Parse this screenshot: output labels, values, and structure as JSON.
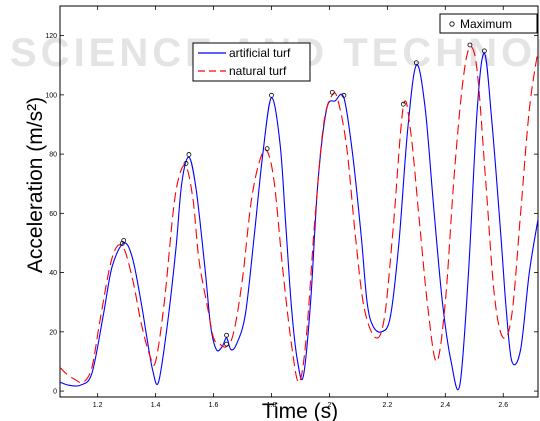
{
  "watermark": "SCIENCE AND TECHNOLOGY",
  "chart_data": {
    "type": "line",
    "title": "",
    "xlabel": "Time (s)",
    "ylabel": "Acceleration (m/s²)",
    "xlim": [
      1.07,
      2.72
    ],
    "ylim": [
      -2,
      130
    ],
    "xticks": [
      1.2,
      1.4,
      1.6,
      1.8,
      2.0,
      2.2,
      2.4,
      2.6
    ],
    "xtick_labels": [
      "1.2",
      "1.4",
      "1.6",
      "1.8",
      "2",
      "2.2",
      "2.4",
      "2.6"
    ],
    "yticks": [
      0,
      20,
      40,
      60,
      80,
      100,
      120
    ],
    "ytick_labels": [
      "0",
      "20",
      "40",
      "60",
      "80",
      "100",
      "120"
    ],
    "grid": false,
    "legend_position": "top-center",
    "series": [
      {
        "name": "artificial turf",
        "color": "#0000ff",
        "style": "solid",
        "x": [
          1.07,
          1.1,
          1.14,
          1.18,
          1.22,
          1.25,
          1.29,
          1.32,
          1.35,
          1.37,
          1.39,
          1.41,
          1.44,
          1.47,
          1.49,
          1.515,
          1.54,
          1.57,
          1.59,
          1.61,
          1.63,
          1.645,
          1.66,
          1.68,
          1.71,
          1.74,
          1.77,
          1.8,
          1.83,
          1.85,
          1.87,
          1.89,
          1.91,
          1.935,
          1.96,
          1.99,
          2.02,
          2.05,
          2.08,
          2.11,
          2.13,
          2.15,
          2.18,
          2.21,
          2.24,
          2.27,
          2.3,
          2.33,
          2.36,
          2.39,
          2.42,
          2.45,
          2.48,
          2.51,
          2.535,
          2.56,
          2.59,
          2.61,
          2.63,
          2.66,
          2.69,
          2.72
        ],
        "y": [
          3,
          2,
          2,
          6,
          26,
          42,
          50,
          45,
          30,
          18,
          7,
          3,
          22,
          48,
          70,
          79,
          68,
          42,
          22,
          14,
          15,
          18,
          14,
          16,
          26,
          52,
          80,
          99,
          83,
          55,
          27,
          10,
          5,
          30,
          70,
          95,
          98,
          99,
          80,
          52,
          30,
          22,
          20,
          25,
          50,
          88,
          110,
          96,
          62,
          30,
          10,
          2,
          40,
          95,
          114,
          92,
          55,
          28,
          10,
          14,
          40,
          58
        ]
      },
      {
        "name": "natural turf",
        "color": "#ff0000",
        "style": "dashed",
        "x": [
          1.07,
          1.09,
          1.12,
          1.15,
          1.18,
          1.21,
          1.25,
          1.285,
          1.32,
          1.35,
          1.38,
          1.4,
          1.43,
          1.46,
          1.48,
          1.505,
          1.53,
          1.55,
          1.58,
          1.6,
          1.62,
          1.645,
          1.67,
          1.7,
          1.73,
          1.76,
          1.785,
          1.81,
          1.84,
          1.87,
          1.895,
          1.92,
          1.95,
          1.98,
          2.01,
          2.03,
          2.06,
          2.09,
          2.12,
          2.16,
          2.19,
          2.22,
          2.255,
          2.28,
          2.31,
          2.34,
          2.37,
          2.4,
          2.43,
          2.46,
          2.485,
          2.51,
          2.54,
          2.57,
          2.6,
          2.63,
          2.66,
          2.69,
          2.72
        ],
        "y": [
          8,
          6,
          4,
          3,
          8,
          25,
          45,
          49,
          38,
          23,
          12,
          10,
          30,
          60,
          72,
          76,
          64,
          44,
          28,
          18,
          16,
          15,
          20,
          38,
          64,
          78,
          81,
          70,
          40,
          15,
          3,
          18,
          58,
          90,
          100,
          98,
          82,
          52,
          28,
          18,
          25,
          55,
          96,
          88,
          58,
          28,
          10,
          30,
          72,
          104,
          116,
          108,
          70,
          32,
          18,
          26,
          60,
          95,
          115
        ]
      }
    ],
    "maxima_legend": "Maximum",
    "maxima": [
      {
        "x": 1.29,
        "y": 50
      },
      {
        "x": 1.285,
        "y": 49
      },
      {
        "x": 1.515,
        "y": 79
      },
      {
        "x": 1.505,
        "y": 76
      },
      {
        "x": 1.645,
        "y": 18
      },
      {
        "x": 1.645,
        "y": 15
      },
      {
        "x": 1.785,
        "y": 81
      },
      {
        "x": 1.8,
        "y": 99
      },
      {
        "x": 2.01,
        "y": 100
      },
      {
        "x": 2.05,
        "y": 99
      },
      {
        "x": 2.255,
        "y": 96
      },
      {
        "x": 2.3,
        "y": 110
      },
      {
        "x": 2.485,
        "y": 116
      },
      {
        "x": 2.535,
        "y": 114
      }
    ]
  }
}
